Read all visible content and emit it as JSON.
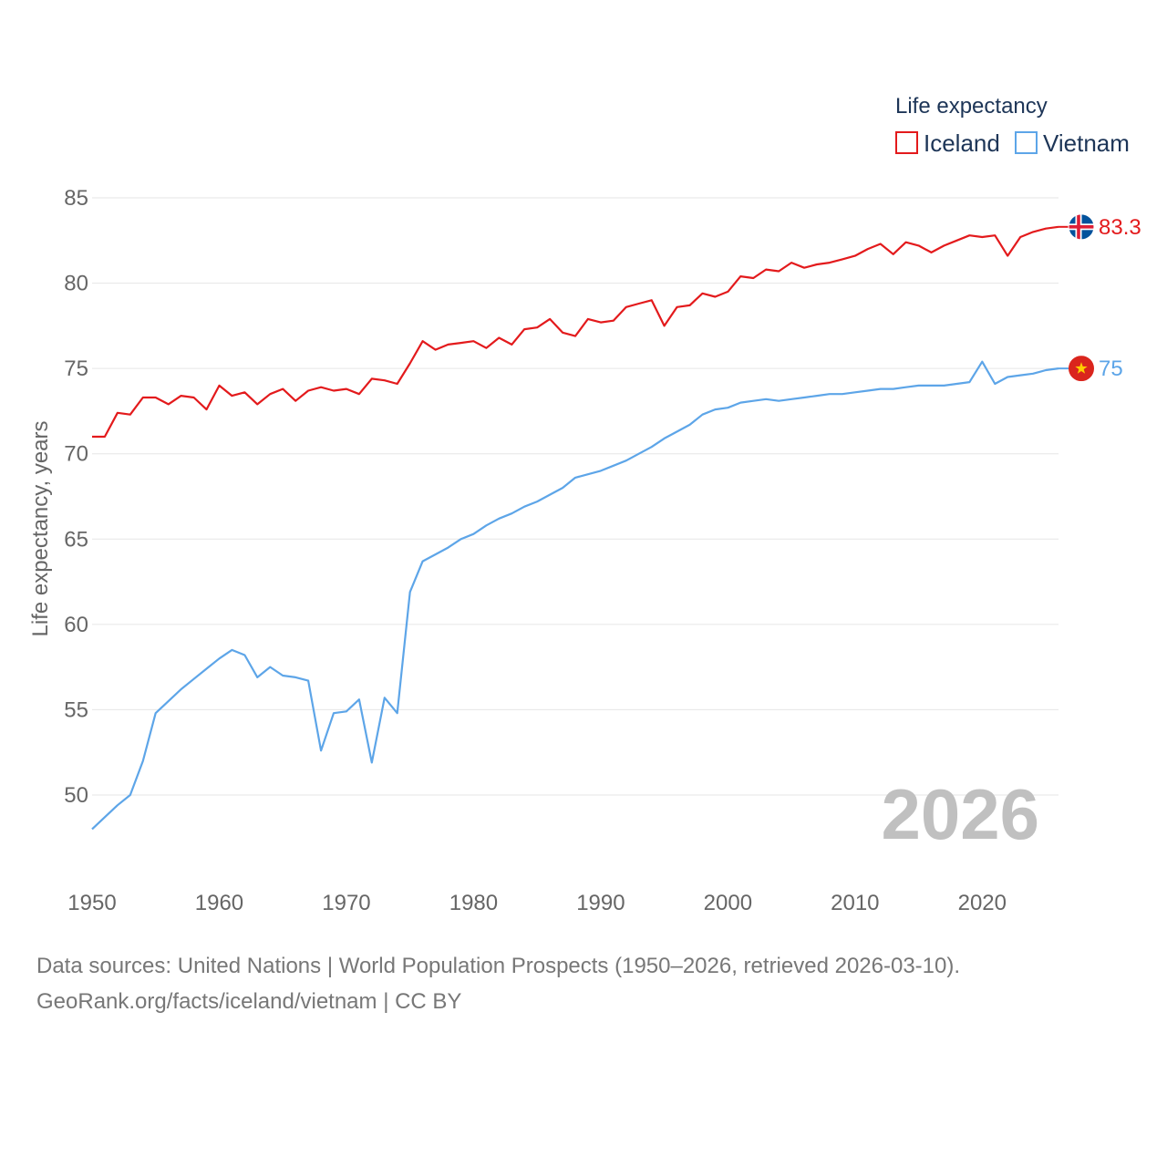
{
  "chart_data": {
    "type": "line",
    "title": "",
    "xlabel": "",
    "ylabel": "Life expectancy, years",
    "xlim": [
      1950,
      2026
    ],
    "ylim": [
      47,
      86
    ],
    "x_ticks": [
      1950,
      1960,
      1970,
      1980,
      1990,
      2000,
      2010,
      2020
    ],
    "y_ticks": [
      50,
      55,
      60,
      65,
      70,
      75,
      80,
      85
    ],
    "grid": true,
    "legend_title": "Life expectancy",
    "legend_position": "top-right",
    "current_year_label": "2026",
    "x": [
      1950,
      1951,
      1952,
      1953,
      1954,
      1955,
      1956,
      1957,
      1958,
      1959,
      1960,
      1961,
      1962,
      1963,
      1964,
      1965,
      1966,
      1967,
      1968,
      1969,
      1970,
      1971,
      1972,
      1973,
      1974,
      1975,
      1976,
      1977,
      1978,
      1979,
      1980,
      1981,
      1982,
      1983,
      1984,
      1985,
      1986,
      1987,
      1988,
      1989,
      1990,
      1991,
      1992,
      1993,
      1994,
      1995,
      1996,
      1997,
      1998,
      1999,
      2000,
      2001,
      2002,
      2003,
      2004,
      2005,
      2006,
      2007,
      2008,
      2009,
      2010,
      2011,
      2012,
      2013,
      2014,
      2015,
      2016,
      2017,
      2018,
      2019,
      2020,
      2021,
      2022,
      2023,
      2024,
      2025,
      2026
    ],
    "series": [
      {
        "name": "Iceland",
        "color": "#e31a1c",
        "end_label": "83.3",
        "flag": "iceland-flag",
        "values": [
          71.0,
          71.0,
          72.4,
          72.3,
          73.3,
          73.3,
          72.9,
          73.4,
          73.3,
          72.6,
          74.0,
          73.4,
          73.6,
          72.9,
          73.5,
          73.8,
          73.1,
          73.7,
          73.9,
          73.7,
          73.8,
          73.5,
          74.4,
          74.3,
          74.1,
          75.3,
          76.6,
          76.1,
          76.4,
          76.5,
          76.6,
          76.2,
          76.8,
          76.4,
          77.3,
          77.4,
          77.9,
          77.1,
          76.9,
          77.9,
          77.7,
          77.8,
          78.6,
          78.8,
          79.0,
          77.5,
          78.6,
          78.7,
          79.4,
          79.2,
          79.5,
          80.4,
          80.3,
          80.8,
          80.7,
          81.2,
          80.9,
          81.1,
          81.2,
          81.4,
          81.6,
          82.0,
          82.3,
          81.7,
          82.4,
          82.2,
          81.8,
          82.2,
          82.5,
          82.8,
          82.7,
          82.8,
          81.6,
          82.7,
          83.0,
          83.2,
          83.3
        ]
      },
      {
        "name": "Vietnam",
        "color": "#5da5e8",
        "end_label": "75",
        "flag": "vietnam-flag",
        "values": [
          48.0,
          48.7,
          49.4,
          50.0,
          52.0,
          54.8,
          55.5,
          56.2,
          56.8,
          57.4,
          58.0,
          58.5,
          58.2,
          56.9,
          57.5,
          57.0,
          56.9,
          56.7,
          52.6,
          54.8,
          54.9,
          55.6,
          51.9,
          55.7,
          54.8,
          61.9,
          63.7,
          64.1,
          64.5,
          65.0,
          65.3,
          65.8,
          66.2,
          66.5,
          66.9,
          67.2,
          67.6,
          68.0,
          68.6,
          68.8,
          69.0,
          69.3,
          69.6,
          70.0,
          70.4,
          70.9,
          71.3,
          71.7,
          72.3,
          72.6,
          72.7,
          73.0,
          73.1,
          73.2,
          73.1,
          73.2,
          73.3,
          73.4,
          73.5,
          73.5,
          73.6,
          73.7,
          73.8,
          73.8,
          73.9,
          74.0,
          74.0,
          74.0,
          74.1,
          74.2,
          75.4,
          74.1,
          74.5,
          74.6,
          74.7,
          74.9,
          75.0
        ]
      }
    ]
  },
  "footer": {
    "sources": "Data sources: United Nations | World Population Prospects (1950–2026, retrieved 2026-03-10).",
    "credit": "GeoRank.org/facts/iceland/vietnam | CC BY"
  }
}
